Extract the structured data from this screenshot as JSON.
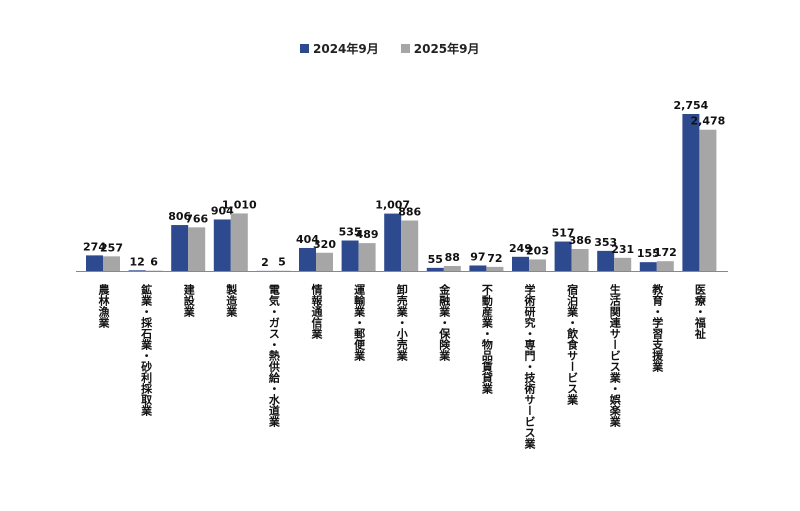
{
  "legend": {
    "series1": "2024年9月",
    "series2": "2025年9月"
  },
  "colors": {
    "series1": "#2E4A8F",
    "series2": "#A6A6A6"
  },
  "chart_data": {
    "type": "bar",
    "categories": [
      "農林漁業",
      "鉱業・採石業・砂利採取業",
      "建設業",
      "製造業",
      "電気・ガス・熱供給・水道業",
      "情報通信業",
      "運輸業・郵便業",
      "卸売業・小売業",
      "金融業・保険業",
      "不動産業・物品賃貸業",
      "学術研究・専門・技術サービス業",
      "宿泊業・飲食サービス業",
      "生活関連サービス業・娯楽業",
      "教育・学習支援業",
      "医療・福祉"
    ],
    "series": [
      {
        "name": "2024年9月",
        "values": [
          274,
          12,
          806,
          904,
          2,
          404,
          535,
          1007,
          55,
          97,
          249,
          517,
          353,
          155,
          2754
        ]
      },
      {
        "name": "2025年9月",
        "values": [
          257,
          6,
          766,
          1010,
          5,
          320,
          489,
          886,
          88,
          72,
          203,
          386,
          231,
          172,
          2478
        ]
      }
    ],
    "labels": [
      [
        "274",
        "12",
        "806",
        "904",
        "2",
        "404",
        "535",
        "1,007",
        "55",
        "97",
        "249",
        "517",
        "353",
        "155",
        "2,754"
      ],
      [
        "257",
        "6",
        "766",
        "1,010",
        "5",
        "320",
        "489",
        "886",
        "88",
        "72",
        "203",
        "386",
        "231",
        "172",
        "2,478"
      ]
    ],
    "ylim": [
      0,
      2754
    ],
    "grid": false,
    "legend_position": "top-center"
  }
}
